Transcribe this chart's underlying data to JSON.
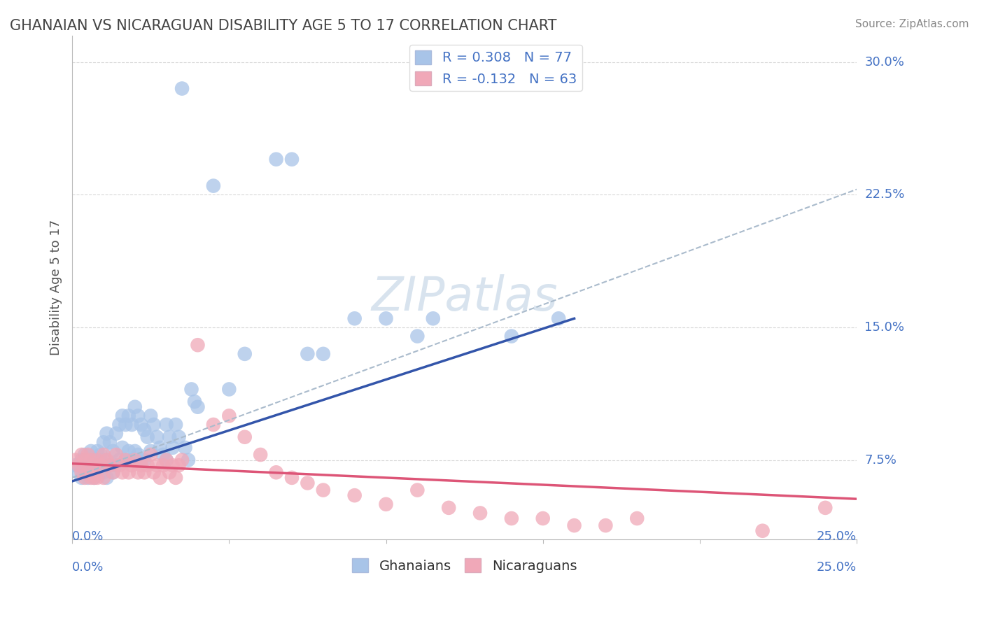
{
  "title": "GHANAIAN VS NICARAGUAN DISABILITY AGE 5 TO 17 CORRELATION CHART",
  "source": "Source: ZipAtlas.com",
  "ylabel": "Disability Age 5 to 17",
  "xlim": [
    0.0,
    0.25
  ],
  "ylim": [
    0.03,
    0.315
  ],
  "R_ghana": 0.308,
  "N_ghana": 77,
  "R_nicaragua": -0.132,
  "N_nicaragua": 63,
  "ghana_color": "#a8c4e8",
  "nicaragua_color": "#f0a8b8",
  "ghana_line_color": "#3355aa",
  "nicaragua_line_color": "#dd5577",
  "dashed_line_color": "#aabbcc",
  "background_color": "#ffffff",
  "grid_color": "#d8d8d8",
  "text_color": "#4472c4",
  "title_color": "#444444",
  "ytick_vals": [
    0.075,
    0.15,
    0.225,
    0.3
  ],
  "ytick_labels": [
    "7.5%",
    "15.0%",
    "22.5%",
    "30.0%"
  ],
  "ghana_x": [
    0.001,
    0.002,
    0.003,
    0.003,
    0.004,
    0.004,
    0.005,
    0.005,
    0.006,
    0.006,
    0.007,
    0.007,
    0.008,
    0.008,
    0.009,
    0.009,
    0.01,
    0.01,
    0.01,
    0.011,
    0.011,
    0.012,
    0.012,
    0.013,
    0.013,
    0.014,
    0.014,
    0.015,
    0.015,
    0.016,
    0.016,
    0.017,
    0.017,
    0.018,
    0.018,
    0.019,
    0.019,
    0.02,
    0.02,
    0.021,
    0.021,
    0.022,
    0.022,
    0.023,
    0.023,
    0.024,
    0.025,
    0.025,
    0.026,
    0.027,
    0.028,
    0.029,
    0.03,
    0.03,
    0.031,
    0.032,
    0.033,
    0.034,
    0.035,
    0.036,
    0.037,
    0.038,
    0.039,
    0.04,
    0.045,
    0.05,
    0.055,
    0.065,
    0.07,
    0.075,
    0.08,
    0.09,
    0.1,
    0.11,
    0.115,
    0.14,
    0.155
  ],
  "ghana_y": [
    0.072,
    0.068,
    0.065,
    0.075,
    0.07,
    0.078,
    0.072,
    0.065,
    0.08,
    0.07,
    0.075,
    0.065,
    0.08,
    0.072,
    0.078,
    0.068,
    0.085,
    0.075,
    0.068,
    0.09,
    0.065,
    0.085,
    0.072,
    0.08,
    0.068,
    0.09,
    0.072,
    0.095,
    0.075,
    0.1,
    0.082,
    0.095,
    0.075,
    0.1,
    0.08,
    0.095,
    0.075,
    0.105,
    0.08,
    0.1,
    0.078,
    0.095,
    0.075,
    0.092,
    0.075,
    0.088,
    0.1,
    0.08,
    0.095,
    0.088,
    0.082,
    0.078,
    0.095,
    0.075,
    0.088,
    0.082,
    0.095,
    0.088,
    0.285,
    0.082,
    0.075,
    0.115,
    0.108,
    0.105,
    0.23,
    0.115,
    0.135,
    0.245,
    0.245,
    0.135,
    0.135,
    0.155,
    0.155,
    0.145,
    0.155,
    0.145,
    0.155
  ],
  "nicaragua_x": [
    0.001,
    0.002,
    0.003,
    0.003,
    0.004,
    0.004,
    0.005,
    0.005,
    0.006,
    0.006,
    0.007,
    0.007,
    0.008,
    0.008,
    0.009,
    0.01,
    0.01,
    0.011,
    0.012,
    0.013,
    0.014,
    0.015,
    0.016,
    0.017,
    0.018,
    0.019,
    0.02,
    0.021,
    0.022,
    0.023,
    0.024,
    0.025,
    0.026,
    0.027,
    0.028,
    0.029,
    0.03,
    0.031,
    0.032,
    0.033,
    0.034,
    0.035,
    0.04,
    0.045,
    0.05,
    0.055,
    0.06,
    0.065,
    0.07,
    0.075,
    0.08,
    0.09,
    0.1,
    0.11,
    0.12,
    0.13,
    0.14,
    0.15,
    0.16,
    0.17,
    0.18,
    0.22,
    0.24
  ],
  "nicaragua_y": [
    0.075,
    0.072,
    0.078,
    0.068,
    0.075,
    0.065,
    0.078,
    0.068,
    0.075,
    0.065,
    0.072,
    0.065,
    0.075,
    0.065,
    0.072,
    0.078,
    0.065,
    0.075,
    0.072,
    0.068,
    0.078,
    0.072,
    0.068,
    0.075,
    0.068,
    0.072,
    0.075,
    0.068,
    0.072,
    0.068,
    0.072,
    0.078,
    0.068,
    0.072,
    0.065,
    0.072,
    0.075,
    0.068,
    0.072,
    0.065,
    0.072,
    0.075,
    0.14,
    0.095,
    0.1,
    0.088,
    0.078,
    0.068,
    0.065,
    0.062,
    0.058,
    0.055,
    0.05,
    0.058,
    0.048,
    0.045,
    0.042,
    0.042,
    0.038,
    0.038,
    0.042,
    0.035,
    0.048
  ],
  "ghana_line_x": [
    0.0,
    0.16
  ],
  "ghana_line_y": [
    0.063,
    0.155
  ],
  "nicaragua_line_x": [
    0.0,
    0.25
  ],
  "nicaragua_line_y": [
    0.073,
    0.053
  ],
  "dashed_line_x": [
    0.0,
    0.25
  ],
  "dashed_line_y": [
    0.065,
    0.228
  ]
}
